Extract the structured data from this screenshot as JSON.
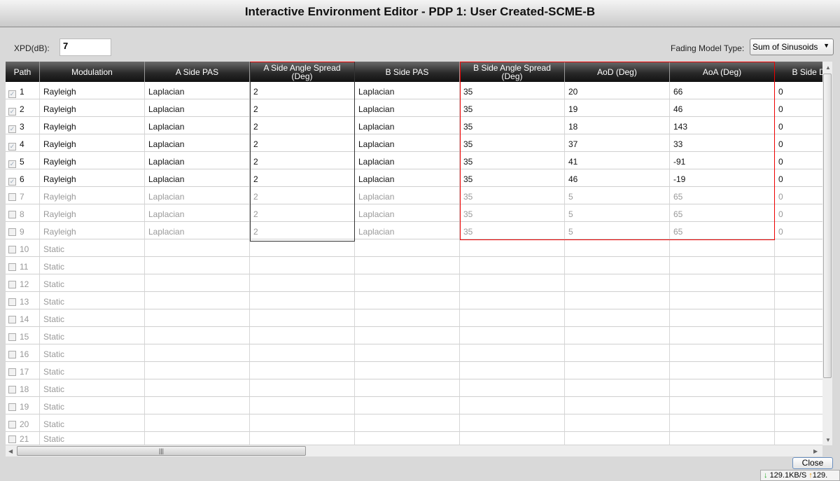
{
  "window": {
    "title": "Interactive Environment Editor - PDP 1: User Created-SCME-B"
  },
  "xpd": {
    "label": "XPD(dB):",
    "value": "7"
  },
  "fading": {
    "label": "Fading Model Type:",
    "value": "Sum of Sinusoids"
  },
  "columns": [
    "Path",
    "Modulation",
    "A Side PAS",
    "A Side Angle Spread\n(Deg)",
    "B Side PAS",
    "B Side Angle Spread\n(Deg)",
    "AoD (Deg)",
    "AoA (Deg)",
    "B Side Di"
  ],
  "rows": [
    {
      "checked": true,
      "path": "1",
      "cells": [
        "Rayleigh",
        "Laplacian",
        "2",
        "Laplacian",
        "35",
        "20",
        "66",
        "0"
      ]
    },
    {
      "checked": true,
      "path": "2",
      "cells": [
        "Rayleigh",
        "Laplacian",
        "2",
        "Laplacian",
        "35",
        "19",
        "46",
        "0"
      ]
    },
    {
      "checked": true,
      "path": "3",
      "cells": [
        "Rayleigh",
        "Laplacian",
        "2",
        "Laplacian",
        "35",
        "18",
        "143",
        "0"
      ]
    },
    {
      "checked": true,
      "path": "4",
      "cells": [
        "Rayleigh",
        "Laplacian",
        "2",
        "Laplacian",
        "35",
        "37",
        "33",
        "0"
      ]
    },
    {
      "checked": true,
      "path": "5",
      "cells": [
        "Rayleigh",
        "Laplacian",
        "2",
        "Laplacian",
        "35",
        "41",
        "-91",
        "0"
      ]
    },
    {
      "checked": true,
      "path": "6",
      "cells": [
        "Rayleigh",
        "Laplacian",
        "2",
        "Laplacian",
        "35",
        "46",
        "-19",
        "0"
      ]
    },
    {
      "checked": false,
      "path": "7",
      "cells": [
        "Rayleigh",
        "Laplacian",
        "2",
        "Laplacian",
        "35",
        "5",
        "65",
        "0"
      ]
    },
    {
      "checked": false,
      "path": "8",
      "cells": [
        "Rayleigh",
        "Laplacian",
        "2",
        "Laplacian",
        "35",
        "5",
        "65",
        "0"
      ]
    },
    {
      "checked": false,
      "path": "9",
      "cells": [
        "Rayleigh",
        "Laplacian",
        "2",
        "Laplacian",
        "35",
        "5",
        "65",
        "0"
      ]
    },
    {
      "checked": false,
      "path": "10",
      "cells": [
        "Static",
        "",
        "",
        "",
        "",
        "",
        "",
        ""
      ]
    },
    {
      "checked": false,
      "path": "11",
      "cells": [
        "Static",
        "",
        "",
        "",
        "",
        "",
        "",
        ""
      ]
    },
    {
      "checked": false,
      "path": "12",
      "cells": [
        "Static",
        "",
        "",
        "",
        "",
        "",
        "",
        ""
      ]
    },
    {
      "checked": false,
      "path": "13",
      "cells": [
        "Static",
        "",
        "",
        "",
        "",
        "",
        "",
        ""
      ]
    },
    {
      "checked": false,
      "path": "14",
      "cells": [
        "Static",
        "",
        "",
        "",
        "",
        "",
        "",
        ""
      ]
    },
    {
      "checked": false,
      "path": "15",
      "cells": [
        "Static",
        "",
        "",
        "",
        "",
        "",
        "",
        ""
      ]
    },
    {
      "checked": false,
      "path": "16",
      "cells": [
        "Static",
        "",
        "",
        "",
        "",
        "",
        "",
        ""
      ]
    },
    {
      "checked": false,
      "path": "17",
      "cells": [
        "Static",
        "",
        "",
        "",
        "",
        "",
        "",
        ""
      ]
    },
    {
      "checked": false,
      "path": "18",
      "cells": [
        "Static",
        "",
        "",
        "",
        "",
        "",
        "",
        ""
      ]
    },
    {
      "checked": false,
      "path": "19",
      "cells": [
        "Static",
        "",
        "",
        "",
        "",
        "",
        "",
        ""
      ]
    },
    {
      "checked": false,
      "path": "20",
      "cells": [
        "Static",
        "",
        "",
        "",
        "",
        "",
        "",
        ""
      ]
    },
    {
      "checked": false,
      "path": "21",
      "cells": [
        "Static",
        "",
        "",
        "",
        "",
        "",
        "",
        ""
      ]
    }
  ],
  "close_button": "Close",
  "tray": {
    "down": "129.1KB/S",
    "up": "129."
  }
}
